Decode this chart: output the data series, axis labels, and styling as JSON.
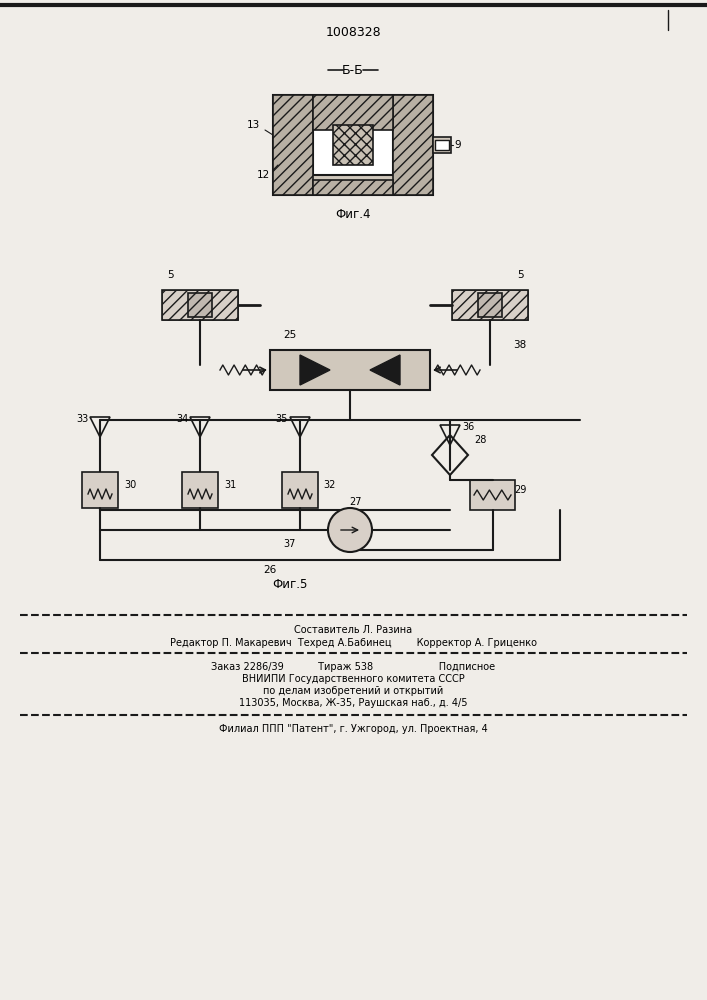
{
  "patent_number": "1008328",
  "bg_color": "#f0ede8",
  "line_color": "#1a1a1a",
  "fig4_caption": "Фиг.4",
  "fig5_caption": "Фиг.5",
  "section_label": "Б-Б",
  "footer": {
    "line1": "Составитель Л. Разина",
    "line2": "Редактор П. Макаревич  Техред А.Бабинец        Корректор А. Гриценко",
    "line3": "Заказ 2286/39           Тираж 538                     Подписное",
    "line4": "ВНИИПИ Государственного комитета СССР",
    "line5": "по делам изобретений и открытий",
    "line6": "113035, Москва, Ж-35, Раушская наб., д. 4/5",
    "line7": "Филиал ППП \"Патент\", г. Ужгород, ул. Проектная, 4"
  }
}
